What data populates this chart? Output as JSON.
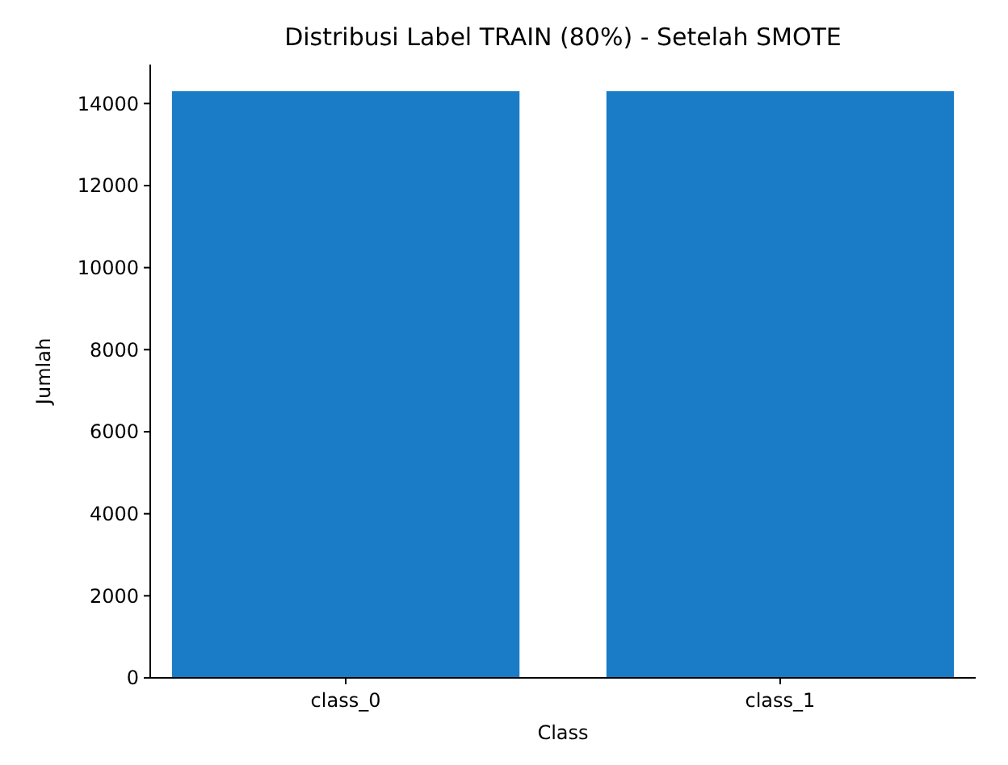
{
  "chart_data": {
    "type": "bar",
    "title": "Distribusi Label TRAIN (80%) - Setelah SMOTE",
    "xlabel": "Class",
    "ylabel": "Jumlah",
    "categories": [
      "class_0",
      "class_1"
    ],
    "values": [
      14300,
      14300
    ],
    "color": "#1a7cc6",
    "ylim": [
      0,
      14950
    ],
    "yticks": [
      0,
      2000,
      4000,
      6000,
      8000,
      10000,
      12000,
      14000
    ],
    "grid": false
  }
}
